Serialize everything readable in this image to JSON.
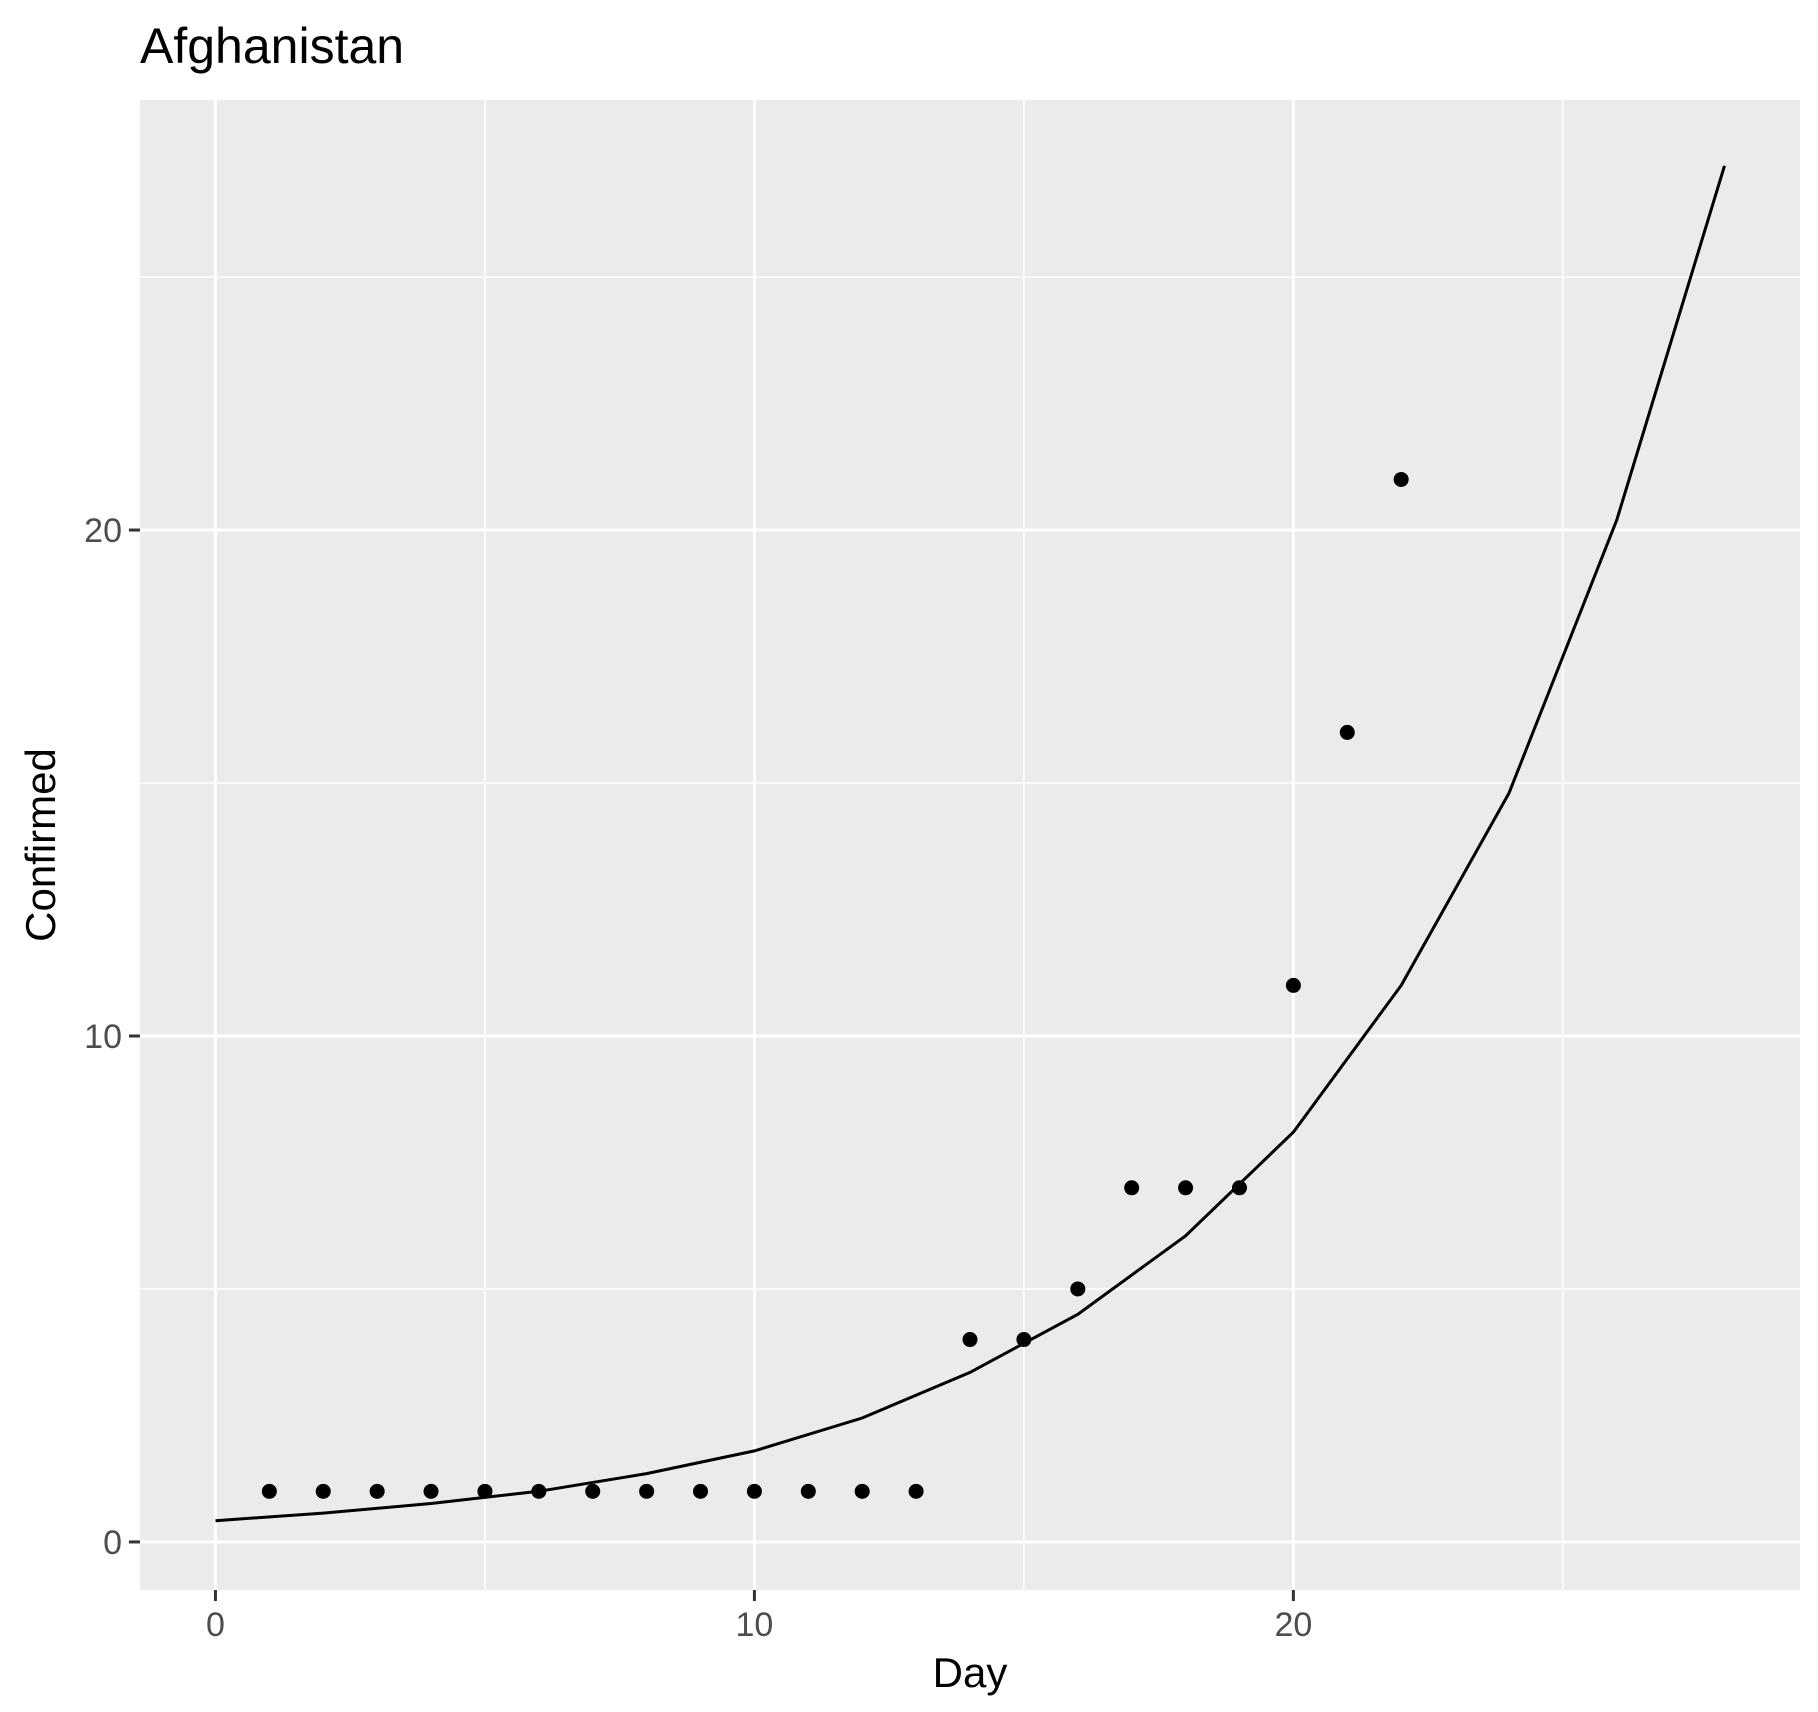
{
  "chart_data": {
    "type": "scatter",
    "title": "Afghanistan",
    "xlabel": "Day",
    "ylabel": "Confirmed",
    "xlim": [
      -1.4,
      29.4
    ],
    "ylim": [
      -0.95,
      28.5
    ],
    "x_ticks": [
      0,
      10,
      20
    ],
    "y_ticks": [
      0,
      10,
      20
    ],
    "x_tick_labels": [
      "0",
      "10",
      "20"
    ],
    "y_tick_labels": [
      "0",
      "10",
      "20"
    ],
    "grid": true,
    "legend": "none",
    "series": [
      {
        "type": "points",
        "x": [
          1,
          2,
          3,
          4,
          5,
          6,
          7,
          8,
          9,
          10,
          11,
          12,
          13,
          14,
          15,
          16,
          17,
          18,
          19,
          20,
          21,
          22
        ],
        "y": [
          1,
          1,
          1,
          1,
          1,
          1,
          1,
          1,
          1,
          1,
          1,
          1,
          1,
          4,
          4,
          5,
          7,
          7,
          7,
          11,
          16,
          21
        ],
        "color": "#000000"
      },
      {
        "type": "line",
        "x": [
          0,
          2,
          4,
          6,
          8,
          10,
          12,
          14,
          16,
          18,
          20,
          22,
          24,
          26,
          28
        ],
        "y": [
          0.42,
          0.57,
          0.76,
          1.0,
          1.35,
          1.8,
          2.45,
          3.35,
          4.5,
          6.05,
          8.1,
          11.0,
          14.8,
          20.2,
          27.2
        ],
        "color": "#000000"
      }
    ]
  }
}
